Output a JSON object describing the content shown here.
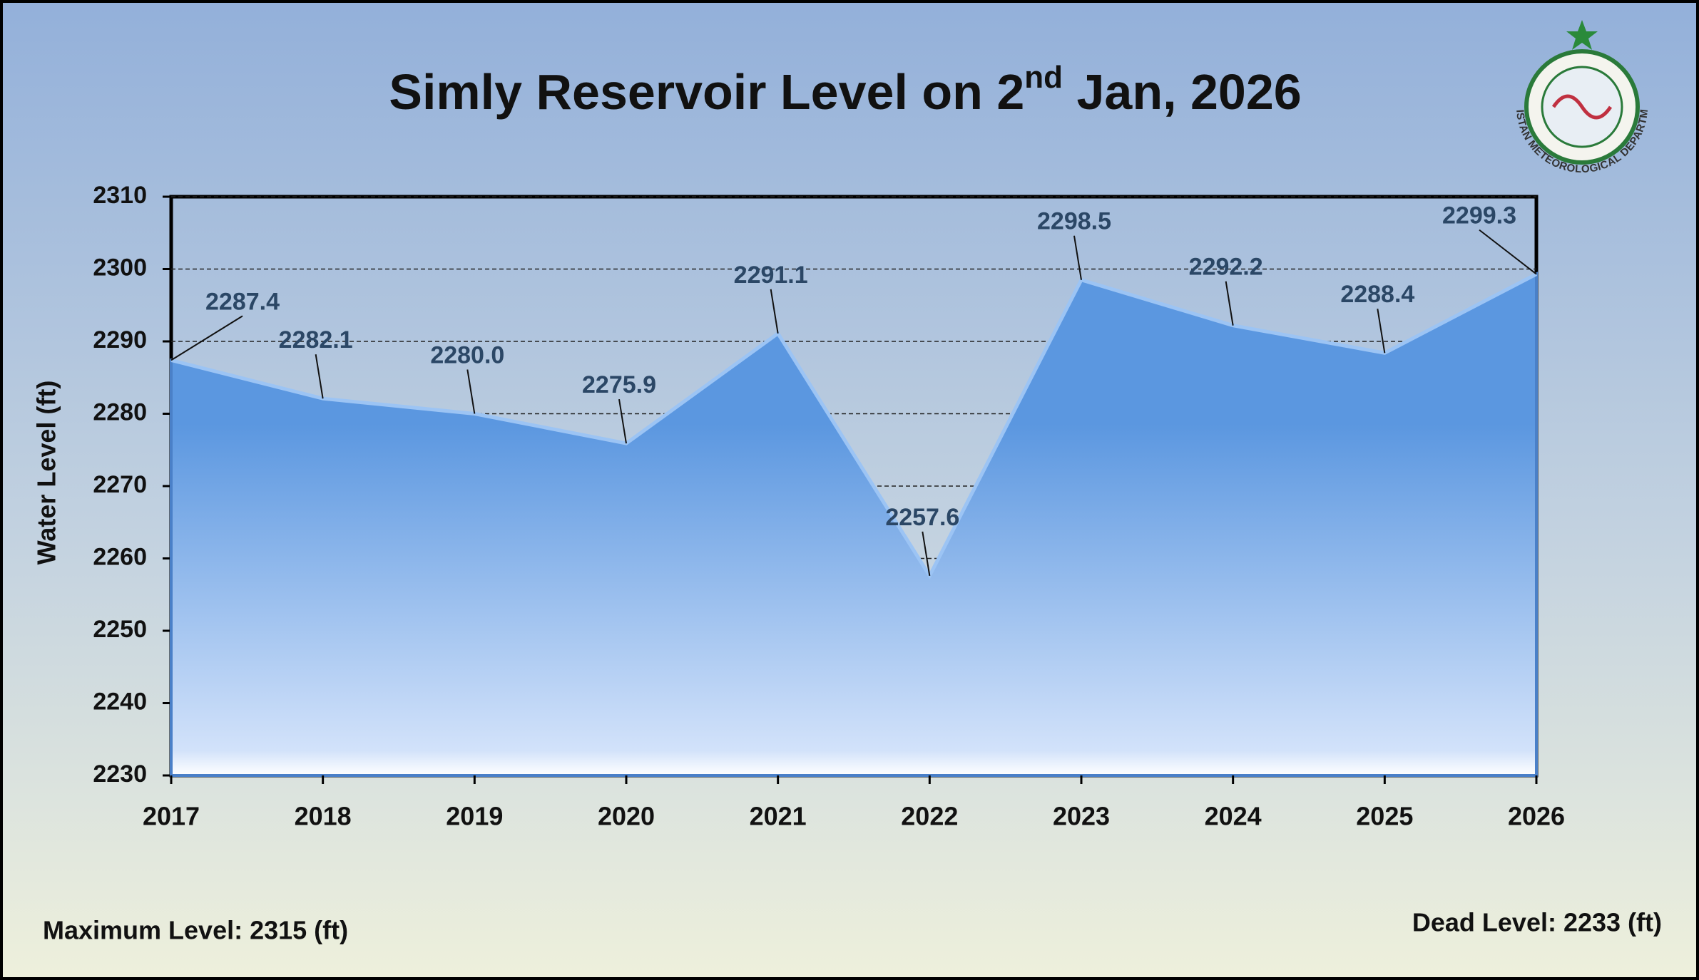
{
  "chart_data": {
    "type": "area",
    "title": [
      "Simly Reservoir Level on 2",
      "nd",
      " Jan, 2026"
    ],
    "y_label": "Water Level (ft)",
    "categories": [
      "2017",
      "2018",
      "2019",
      "2020",
      "2021",
      "2022",
      "2023",
      "2024",
      "2025",
      "2026"
    ],
    "values": [
      2287.4,
      2282.1,
      2280.0,
      2275.9,
      2291.1,
      2257.6,
      2298.5,
      2292.2,
      2288.4,
      2299.3
    ],
    "value_labels": [
      "2287.4",
      "2282.1",
      "2280.0",
      "2275.9",
      "2291.1",
      "2257.6",
      "2298.5",
      "2292.2",
      "2288.4",
      "2299.3"
    ],
    "color": "#5b97e0",
    "ylim": [
      2230,
      2310
    ],
    "yticks": [
      2230,
      2240,
      2250,
      2260,
      2270,
      2280,
      2290,
      2300,
      2310
    ],
    "grid": true,
    "annotations": [
      "Maximum Level: 2315 (ft)",
      "Dead Level: 2233 (ft)"
    ],
    "logo_text": "PAKISTAN METEOROLOGICAL DEPARTMENT"
  }
}
